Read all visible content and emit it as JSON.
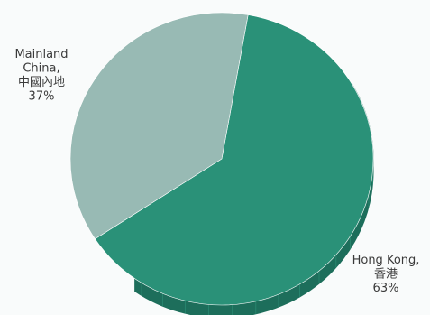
{
  "chart_data": {
    "type": "pie",
    "style": "3d",
    "slices": [
      {
        "label_lines": [
          "Hong Kong,",
          "香港",
          "63%"
        ],
        "value": 63,
        "color": "#2a9178",
        "side_color": "#1d6e5b"
      },
      {
        "label_lines": [
          "Mainland",
          "China,",
          "中國內地",
          "37%"
        ],
        "value": 37,
        "color": "#98bab4",
        "side_color": "#7fa29b"
      }
    ],
    "legend": "none",
    "grid": false
  }
}
